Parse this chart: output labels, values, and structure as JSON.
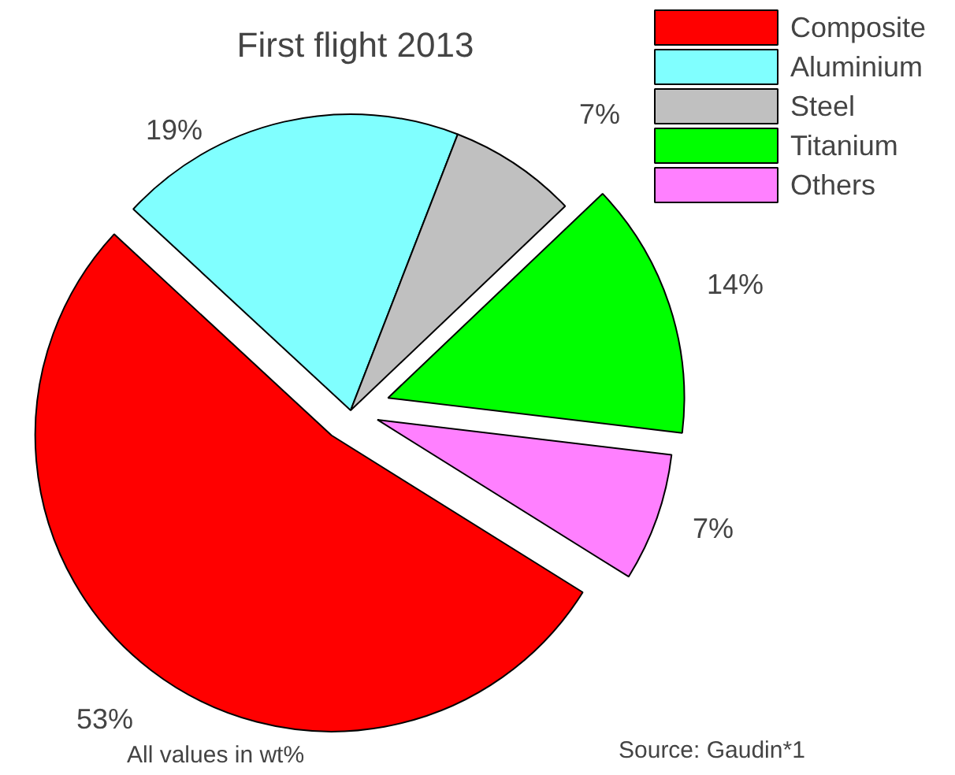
{
  "chart_data": {
    "type": "pie",
    "title": "First flight 2013",
    "categories": [
      "Composite",
      "Aluminium",
      "Steel",
      "Titanium",
      "Others"
    ],
    "values": [
      53,
      19,
      7,
      14,
      7
    ],
    "colors": [
      "#ff0000",
      "#80ffff",
      "#c0c0c0",
      "#00ff00",
      "#ff80ff"
    ],
    "legend": "top right",
    "value_labels": [
      "53%",
      "19%",
      "7%",
      "14%",
      "7%"
    ],
    "annotations": [
      "All values in wt%",
      "Source: Gaudin*1"
    ]
  }
}
